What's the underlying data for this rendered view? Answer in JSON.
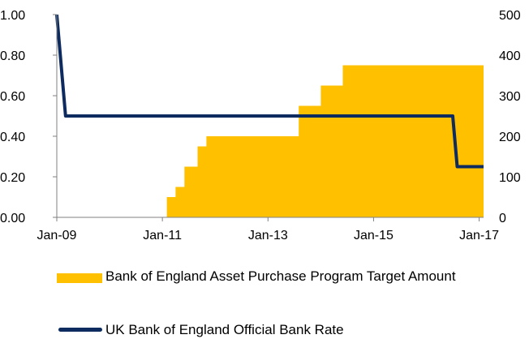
{
  "chart_data": {
    "type": "area+line",
    "x_ticks": [
      "Jan-09",
      "Jan-11",
      "Jan-13",
      "Jan-15",
      "Jan-17"
    ],
    "x_range": [
      "2009-01",
      "2017-02"
    ],
    "y_left": {
      "ticks": [
        "0.00",
        "0.20",
        "0.40",
        "0.60",
        "0.80",
        "1.00"
      ],
      "range": [
        0,
        1
      ]
    },
    "y_right": {
      "ticks": [
        "0",
        "100",
        "200",
        "300",
        "400",
        "500"
      ],
      "range": [
        0,
        500
      ]
    },
    "series": [
      {
        "name": "Bank of England Asset Purchase Program Target Amount",
        "kind": "area",
        "axis": "right",
        "color": "#FFC000",
        "points": [
          [
            "2011-02",
            0
          ],
          [
            "2011-02",
            50
          ],
          [
            "2011-04",
            50
          ],
          [
            "2011-04",
            75
          ],
          [
            "2011-06",
            75
          ],
          [
            "2011-06",
            125
          ],
          [
            "2011-09",
            125
          ],
          [
            "2011-09",
            175
          ],
          [
            "2011-11",
            175
          ],
          [
            "2011-11",
            200
          ],
          [
            "2013-08",
            200
          ],
          [
            "2013-08",
            275
          ],
          [
            "2014-01",
            275
          ],
          [
            "2014-01",
            325
          ],
          [
            "2014-06",
            325
          ],
          [
            "2014-06",
            375
          ],
          [
            "2017-02",
            375
          ]
        ]
      },
      {
        "name": "UK Bank of England Official Bank Rate",
        "kind": "line",
        "axis": "right",
        "color": "#0D2B5E",
        "points": [
          [
            "2009-01",
            500
          ],
          [
            "2009-03",
            250
          ],
          [
            "2016-07",
            250
          ],
          [
            "2016-08",
            125
          ],
          [
            "2017-02",
            125
          ]
        ]
      }
    ]
  },
  "legend": {
    "area_label": "Bank of England Asset Purchase Program Target Amount",
    "line_label": "UK Bank of England Official Bank Rate"
  }
}
